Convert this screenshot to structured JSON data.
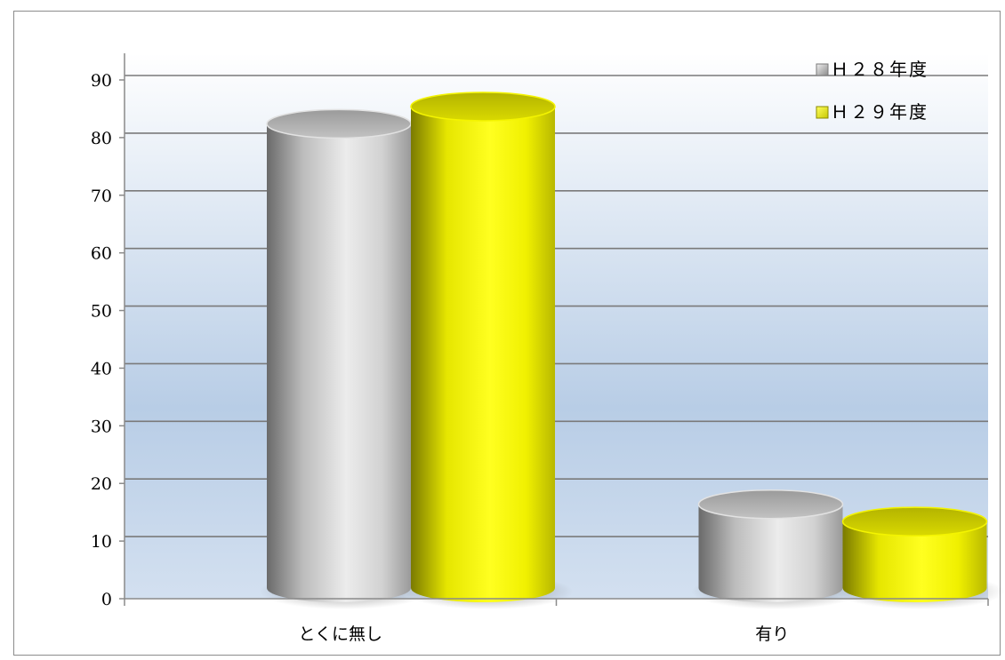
{
  "chart_data": {
    "type": "bar",
    "style": "3d-cylinder",
    "categories": [
      "とくに無し",
      "有り"
    ],
    "series": [
      {
        "name": "Ｈ２８年度",
        "values": [
          83,
          17
        ],
        "color": "#c8c8c8"
      },
      {
        "name": "Ｈ２９年度",
        "values": [
          86,
          14
        ],
        "color": "#ffff00"
      }
    ],
    "yticks": [
      "0",
      "10",
      "20",
      "30",
      "40",
      "50",
      "60",
      "70",
      "80",
      "90"
    ],
    "ylim": [
      0,
      90
    ],
    "ytick_step": 10,
    "grid": true,
    "legend": "top-right",
    "plot_background": "gradient white to light blue"
  }
}
